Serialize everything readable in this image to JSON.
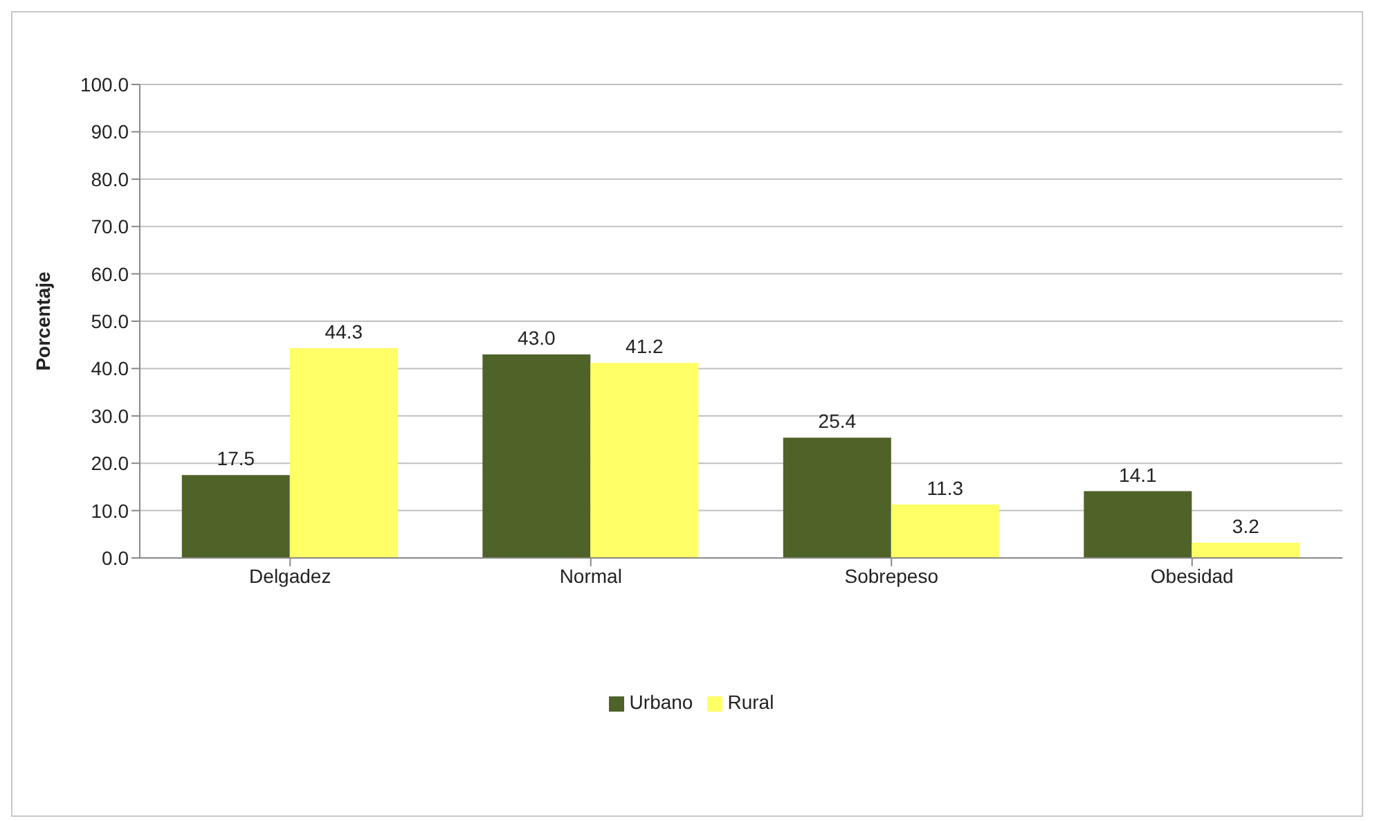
{
  "chart_data": {
    "type": "bar",
    "ylabel": "Porcentaje",
    "categories": [
      "Delgadez",
      "Normal",
      "Sobrepeso",
      "Obesidad"
    ],
    "series": [
      {
        "name": "Urbano",
        "color": "#4f6228",
        "values": [
          17.5,
          43.0,
          25.4,
          14.1
        ],
        "value_labels": [
          "17.5",
          "43.0",
          "25.4",
          "14.1"
        ]
      },
      {
        "name": "Rural",
        "color": "#ffff66",
        "values": [
          44.3,
          41.2,
          11.3,
          3.2
        ],
        "value_labels": [
          "44.3",
          "41.2",
          "11.3",
          "3.2"
        ]
      }
    ],
    "ylim": [
      0,
      100
    ],
    "yticks": [
      {
        "value": 0,
        "label": "0.0"
      },
      {
        "value": 10,
        "label": "10.0"
      },
      {
        "value": 20,
        "label": "20.0"
      },
      {
        "value": 30,
        "label": "30.0"
      },
      {
        "value": 40,
        "label": "40.0"
      },
      {
        "value": 50,
        "label": "50.0"
      },
      {
        "value": 60,
        "label": "60.0"
      },
      {
        "value": 70,
        "label": "70.0"
      },
      {
        "value": 80,
        "label": "80.0"
      },
      {
        "value": 90,
        "label": "90.0"
      },
      {
        "value": 100,
        "label": "100.0"
      }
    ],
    "grid": "y",
    "legend": "bottom"
  }
}
